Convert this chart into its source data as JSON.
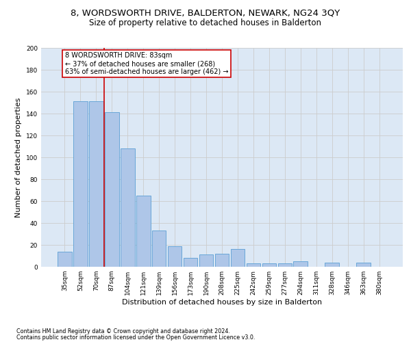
{
  "title": "8, WORDSWORTH DRIVE, BALDERTON, NEWARK, NG24 3QY",
  "subtitle": "Size of property relative to detached houses in Balderton",
  "xlabel": "Distribution of detached houses by size in Balderton",
  "ylabel": "Number of detached properties",
  "bar_labels": [
    "35sqm",
    "52sqm",
    "70sqm",
    "87sqm",
    "104sqm",
    "121sqm",
    "139sqm",
    "156sqm",
    "173sqm",
    "190sqm",
    "208sqm",
    "225sqm",
    "242sqm",
    "259sqm",
    "277sqm",
    "294sqm",
    "311sqm",
    "328sqm",
    "346sqm",
    "363sqm",
    "380sqm"
  ],
  "bar_values": [
    14,
    151,
    151,
    141,
    108,
    65,
    33,
    19,
    8,
    11,
    12,
    16,
    3,
    3,
    3,
    5,
    0,
    4,
    0,
    4,
    0
  ],
  "bar_color": "#aec6e8",
  "bar_edgecolor": "#5a9fd4",
  "annotation_text": "8 WORDSWORTH DRIVE: 83sqm\n← 37% of detached houses are smaller (268)\n63% of semi-detached houses are larger (462) →",
  "annotation_box_color": "#ffffff",
  "annotation_box_edgecolor": "#cc0000",
  "vline_color": "#cc0000",
  "ylim": [
    0,
    200
  ],
  "yticks": [
    0,
    20,
    40,
    60,
    80,
    100,
    120,
    140,
    160,
    180,
    200
  ],
  "grid_color": "#cccccc",
  "background_color": "#dce8f5",
  "footer_line1": "Contains HM Land Registry data © Crown copyright and database right 2024.",
  "footer_line2": "Contains public sector information licensed under the Open Government Licence v3.0.",
  "title_fontsize": 9.5,
  "subtitle_fontsize": 8.5,
  "xlabel_fontsize": 8,
  "ylabel_fontsize": 8,
  "tick_fontsize": 6.5,
  "annotation_fontsize": 7,
  "footer_fontsize": 5.8
}
